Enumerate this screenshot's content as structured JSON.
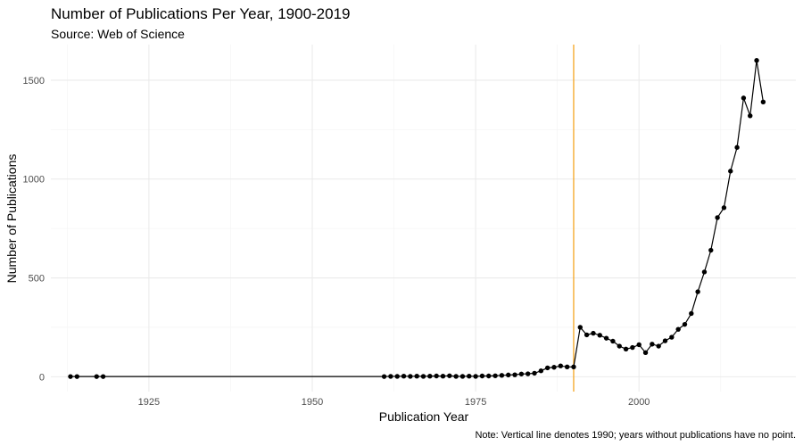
{
  "chart_data": {
    "type": "line",
    "title": "Number of Publications Per Year, 1900-2019",
    "subtitle": "Source: Web of Science",
    "xlabel": "Publication Year",
    "ylabel": "Number of Publications",
    "caption": "Note: Vertical line denotes 1990; years without publications have no point.",
    "xlim": [
      1910,
      2024
    ],
    "ylim": [
      -75,
      1680
    ],
    "x_ticks": [
      1925,
      1950,
      1975,
      2000
    ],
    "y_ticks": [
      0,
      500,
      1000,
      1500
    ],
    "grid": true,
    "reference_line": {
      "x": 1990,
      "color": "#f5a623"
    },
    "series": [
      {
        "color": "#000000",
        "points": [
          {
            "x": 1913,
            "y": 1
          },
          {
            "x": 1914,
            "y": 1
          },
          {
            "x": 1917,
            "y": 1
          },
          {
            "x": 1918,
            "y": 1
          },
          {
            "x": 1961,
            "y": 1
          },
          {
            "x": 1962,
            "y": 2
          },
          {
            "x": 1963,
            "y": 2
          },
          {
            "x": 1964,
            "y": 3
          },
          {
            "x": 1965,
            "y": 2
          },
          {
            "x": 1966,
            "y": 3
          },
          {
            "x": 1967,
            "y": 2
          },
          {
            "x": 1968,
            "y": 3
          },
          {
            "x": 1969,
            "y": 4
          },
          {
            "x": 1970,
            "y": 3
          },
          {
            "x": 1971,
            "y": 5
          },
          {
            "x": 1972,
            "y": 2
          },
          {
            "x": 1973,
            "y": 2
          },
          {
            "x": 1974,
            "y": 3
          },
          {
            "x": 1975,
            "y": 2
          },
          {
            "x": 1976,
            "y": 4
          },
          {
            "x": 1977,
            "y": 4
          },
          {
            "x": 1978,
            "y": 5
          },
          {
            "x": 1979,
            "y": 7
          },
          {
            "x": 1980,
            "y": 9
          },
          {
            "x": 1981,
            "y": 10
          },
          {
            "x": 1982,
            "y": 14
          },
          {
            "x": 1983,
            "y": 15
          },
          {
            "x": 1984,
            "y": 18
          },
          {
            "x": 1985,
            "y": 30
          },
          {
            "x": 1986,
            "y": 45
          },
          {
            "x": 1987,
            "y": 48
          },
          {
            "x": 1988,
            "y": 55
          },
          {
            "x": 1989,
            "y": 50
          },
          {
            "x": 1990,
            "y": 50
          },
          {
            "x": 1991,
            "y": 250
          },
          {
            "x": 1992,
            "y": 212
          },
          {
            "x": 1993,
            "y": 220
          },
          {
            "x": 1994,
            "y": 210
          },
          {
            "x": 1995,
            "y": 195
          },
          {
            "x": 1996,
            "y": 180
          },
          {
            "x": 1997,
            "y": 155
          },
          {
            "x": 1998,
            "y": 140
          },
          {
            "x": 1999,
            "y": 148
          },
          {
            "x": 2000,
            "y": 162
          },
          {
            "x": 2001,
            "y": 122
          },
          {
            "x": 2002,
            "y": 165
          },
          {
            "x": 2003,
            "y": 155
          },
          {
            "x": 2004,
            "y": 182
          },
          {
            "x": 2005,
            "y": 200
          },
          {
            "x": 2006,
            "y": 240
          },
          {
            "x": 2007,
            "y": 265
          },
          {
            "x": 2008,
            "y": 320
          },
          {
            "x": 2009,
            "y": 430
          },
          {
            "x": 2010,
            "y": 530
          },
          {
            "x": 2011,
            "y": 640
          },
          {
            "x": 2012,
            "y": 805
          },
          {
            "x": 2013,
            "y": 855
          },
          {
            "x": 2014,
            "y": 1040
          },
          {
            "x": 2015,
            "y": 1160
          },
          {
            "x": 2016,
            "y": 1410
          },
          {
            "x": 2017,
            "y": 1320
          },
          {
            "x": 2018,
            "y": 1600
          },
          {
            "x": 2019,
            "y": 1390
          }
        ]
      }
    ]
  }
}
